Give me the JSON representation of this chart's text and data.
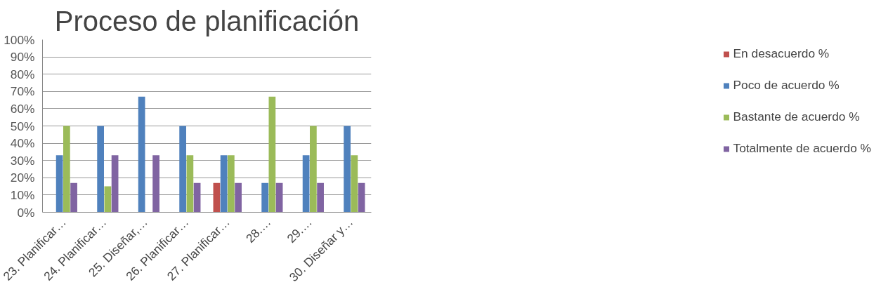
{
  "chart_data": {
    "type": "bar",
    "title": "Proceso de planificación",
    "categories": [
      "23. Planificar…",
      "24. Planificar…",
      "25. Diseñar,…",
      "26. Planificar…",
      "27. Planificar…",
      "28.…",
      "29.…",
      "30. Diseñar y…"
    ],
    "series": [
      {
        "name": "En desacuerdo %",
        "color": "#c0504d",
        "values": [
          0,
          0,
          0,
          0,
          17,
          0,
          0,
          0
        ]
      },
      {
        "name": "Poco de acuerdo %",
        "color": "#4f81bd",
        "values": [
          33,
          50,
          67,
          50,
          33,
          17,
          33,
          50
        ]
      },
      {
        "name": "Bastante de acuerdo %",
        "color": "#9bbb59",
        "values": [
          50,
          15,
          0,
          33,
          33,
          67,
          50,
          33
        ]
      },
      {
        "name": "Totalmente de acuerdo %",
        "color": "#8064a2",
        "values": [
          17,
          33,
          33,
          17,
          17,
          17,
          17,
          17
        ]
      }
    ],
    "ylim": [
      0,
      100
    ],
    "yticks": [
      {
        "value": 0,
        "label": "0%"
      },
      {
        "value": 10,
        "label": "10%"
      },
      {
        "value": 20,
        "label": "20%"
      },
      {
        "value": 30,
        "label": "30%"
      },
      {
        "value": 40,
        "label": "40%"
      },
      {
        "value": 50,
        "label": "50%"
      },
      {
        "value": 60,
        "label": "60%"
      },
      {
        "value": 70,
        "label": "70%"
      },
      {
        "value": 80,
        "label": "80%"
      },
      {
        "value": 90,
        "label": "90%"
      },
      {
        "value": 100,
        "label": "100%"
      }
    ],
    "grid": "y",
    "legend": "right"
  }
}
